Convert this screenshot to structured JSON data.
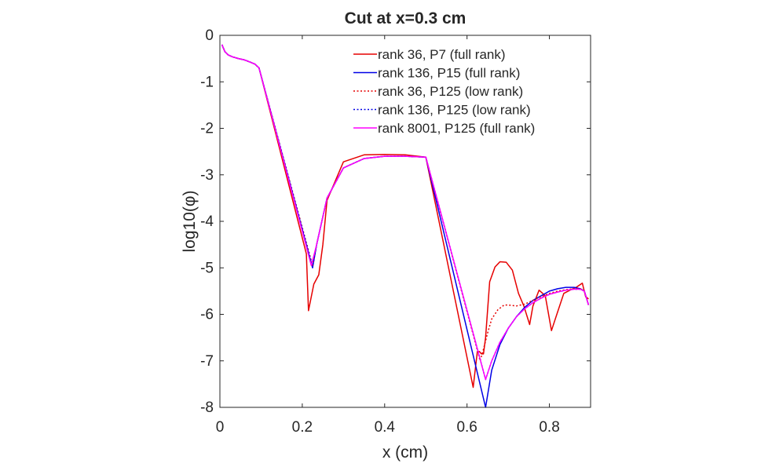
{
  "chart_data": {
    "type": "line",
    "title": "Cut at x=0.3 cm",
    "xlabel": "x (cm)",
    "ylabel": "log10(φ)",
    "xlim": [
      0,
      0.9
    ],
    "ylim": [
      -8,
      0
    ],
    "xticks": [
      0,
      0.2,
      0.4,
      0.6,
      0.8
    ],
    "xtick_labels": [
      "0",
      "0.2",
      "0.4",
      "0.6",
      "0.8"
    ],
    "yticks": [
      0,
      -1,
      -2,
      -3,
      -4,
      -5,
      -6,
      -7,
      -8
    ],
    "ytick_labels": [
      "0",
      "-1",
      "-2",
      "-3",
      "-4",
      "-5",
      "-6",
      "-7",
      "-8"
    ],
    "grid": false,
    "legend_position": "top-right",
    "series": [
      {
        "name": "rank 36, P7 (full rank)",
        "color": "#e60000",
        "dash": "solid",
        "x": [
          0.005,
          0.012,
          0.02,
          0.03,
          0.045,
          0.06,
          0.075,
          0.085,
          0.095,
          0.21,
          0.215,
          0.228,
          0.24,
          0.25,
          0.26,
          0.3,
          0.35,
          0.4,
          0.45,
          0.5,
          0.615,
          0.625,
          0.63,
          0.635,
          0.64,
          0.645,
          0.655,
          0.668,
          0.68,
          0.695,
          0.71,
          0.725,
          0.738,
          0.752,
          0.76,
          0.775,
          0.79,
          0.805,
          0.82,
          0.835,
          0.85,
          0.865,
          0.88,
          0.888,
          0.895
        ],
        "y": [
          -0.2,
          -0.35,
          -0.42,
          -0.46,
          -0.5,
          -0.53,
          -0.58,
          -0.62,
          -0.7,
          -4.7,
          -5.92,
          -5.35,
          -5.15,
          -4.5,
          -3.55,
          -2.72,
          -2.57,
          -2.56,
          -2.57,
          -2.62,
          -7.57,
          -6.8,
          -6.8,
          -6.85,
          -6.85,
          -6.5,
          -5.3,
          -4.98,
          -4.87,
          -4.88,
          -5.05,
          -5.55,
          -5.82,
          -6.22,
          -5.82,
          -5.48,
          -5.6,
          -6.35,
          -5.95,
          -5.55,
          -5.48,
          -5.42,
          -5.33,
          -5.62,
          -5.67
        ]
      },
      {
        "name": "rank 136, P15 (full rank)",
        "color": "#0000e6",
        "dash": "solid",
        "x": [
          0.005,
          0.012,
          0.02,
          0.03,
          0.045,
          0.06,
          0.075,
          0.085,
          0.095,
          0.225,
          0.235,
          0.25,
          0.26,
          0.3,
          0.35,
          0.4,
          0.45,
          0.5,
          0.645,
          0.66,
          0.68,
          0.7,
          0.72,
          0.74,
          0.76,
          0.78,
          0.8,
          0.82,
          0.84,
          0.86,
          0.875,
          0.885,
          0.895
        ],
        "y": [
          -0.2,
          -0.35,
          -0.42,
          -0.46,
          -0.5,
          -0.53,
          -0.58,
          -0.62,
          -0.7,
          -5.0,
          -4.5,
          -3.9,
          -3.5,
          -2.85,
          -2.65,
          -2.6,
          -2.6,
          -2.62,
          -8.0,
          -7.2,
          -6.65,
          -6.3,
          -6.05,
          -5.85,
          -5.7,
          -5.6,
          -5.5,
          -5.45,
          -5.42,
          -5.42,
          -5.45,
          -5.5,
          -5.8
        ]
      },
      {
        "name": "rank 36, P125 (low rank)",
        "color": "#e60000",
        "dash": "dotted",
        "x": [
          0.005,
          0.012,
          0.02,
          0.03,
          0.045,
          0.06,
          0.075,
          0.085,
          0.095,
          0.225,
          0.235,
          0.25,
          0.26,
          0.3,
          0.35,
          0.4,
          0.45,
          0.5,
          0.632,
          0.64,
          0.65,
          0.66,
          0.675,
          0.69,
          0.7,
          0.72,
          0.74,
          0.76,
          0.78,
          0.8,
          0.82,
          0.84,
          0.86,
          0.875,
          0.885,
          0.895
        ],
        "y": [
          -0.2,
          -0.35,
          -0.42,
          -0.46,
          -0.5,
          -0.53,
          -0.58,
          -0.62,
          -0.7,
          -4.95,
          -4.5,
          -3.9,
          -3.5,
          -2.85,
          -2.65,
          -2.6,
          -2.6,
          -2.62,
          -7.0,
          -6.75,
          -6.4,
          -6.1,
          -5.9,
          -5.8,
          -5.8,
          -5.82,
          -5.78,
          -5.7,
          -5.62,
          -5.55,
          -5.5,
          -5.47,
          -5.45,
          -5.45,
          -5.5,
          -5.8
        ]
      },
      {
        "name": "rank 136, P125 (low rank)",
        "color": "#0000e6",
        "dash": "dotted",
        "x": [
          0.005,
          0.012,
          0.02,
          0.03,
          0.045,
          0.06,
          0.075,
          0.085,
          0.095,
          0.225,
          0.235,
          0.25,
          0.26,
          0.3,
          0.35,
          0.4,
          0.45,
          0.5,
          0.645,
          0.66,
          0.68,
          0.7,
          0.72,
          0.74,
          0.76,
          0.78,
          0.8,
          0.82,
          0.84,
          0.86,
          0.875,
          0.885,
          0.895
        ],
        "y": [
          -0.2,
          -0.35,
          -0.42,
          -0.46,
          -0.5,
          -0.53,
          -0.58,
          -0.62,
          -0.7,
          -4.98,
          -4.5,
          -3.9,
          -3.5,
          -2.85,
          -2.65,
          -2.6,
          -2.6,
          -2.62,
          -7.4,
          -7.0,
          -6.6,
          -6.3,
          -6.05,
          -5.88,
          -5.75,
          -5.65,
          -5.57,
          -5.52,
          -5.48,
          -5.46,
          -5.46,
          -5.5,
          -5.8
        ]
      },
      {
        "name": "rank 8001, P125 (full rank)",
        "color": "#ff00ff",
        "dash": "solid",
        "x": [
          0.005,
          0.012,
          0.02,
          0.03,
          0.045,
          0.06,
          0.075,
          0.085,
          0.095,
          0.222,
          0.235,
          0.25,
          0.26,
          0.3,
          0.35,
          0.4,
          0.45,
          0.5,
          0.645,
          0.66,
          0.68,
          0.7,
          0.72,
          0.74,
          0.76,
          0.78,
          0.8,
          0.82,
          0.84,
          0.86,
          0.875,
          0.885,
          0.895
        ],
        "y": [
          -0.2,
          -0.35,
          -0.42,
          -0.46,
          -0.5,
          -0.53,
          -0.58,
          -0.62,
          -0.7,
          -4.95,
          -4.5,
          -3.9,
          -3.5,
          -2.85,
          -2.65,
          -2.6,
          -2.6,
          -2.62,
          -7.4,
          -7.0,
          -6.6,
          -6.3,
          -6.05,
          -5.88,
          -5.75,
          -5.65,
          -5.57,
          -5.52,
          -5.48,
          -5.46,
          -5.46,
          -5.5,
          -5.8
        ]
      }
    ]
  }
}
